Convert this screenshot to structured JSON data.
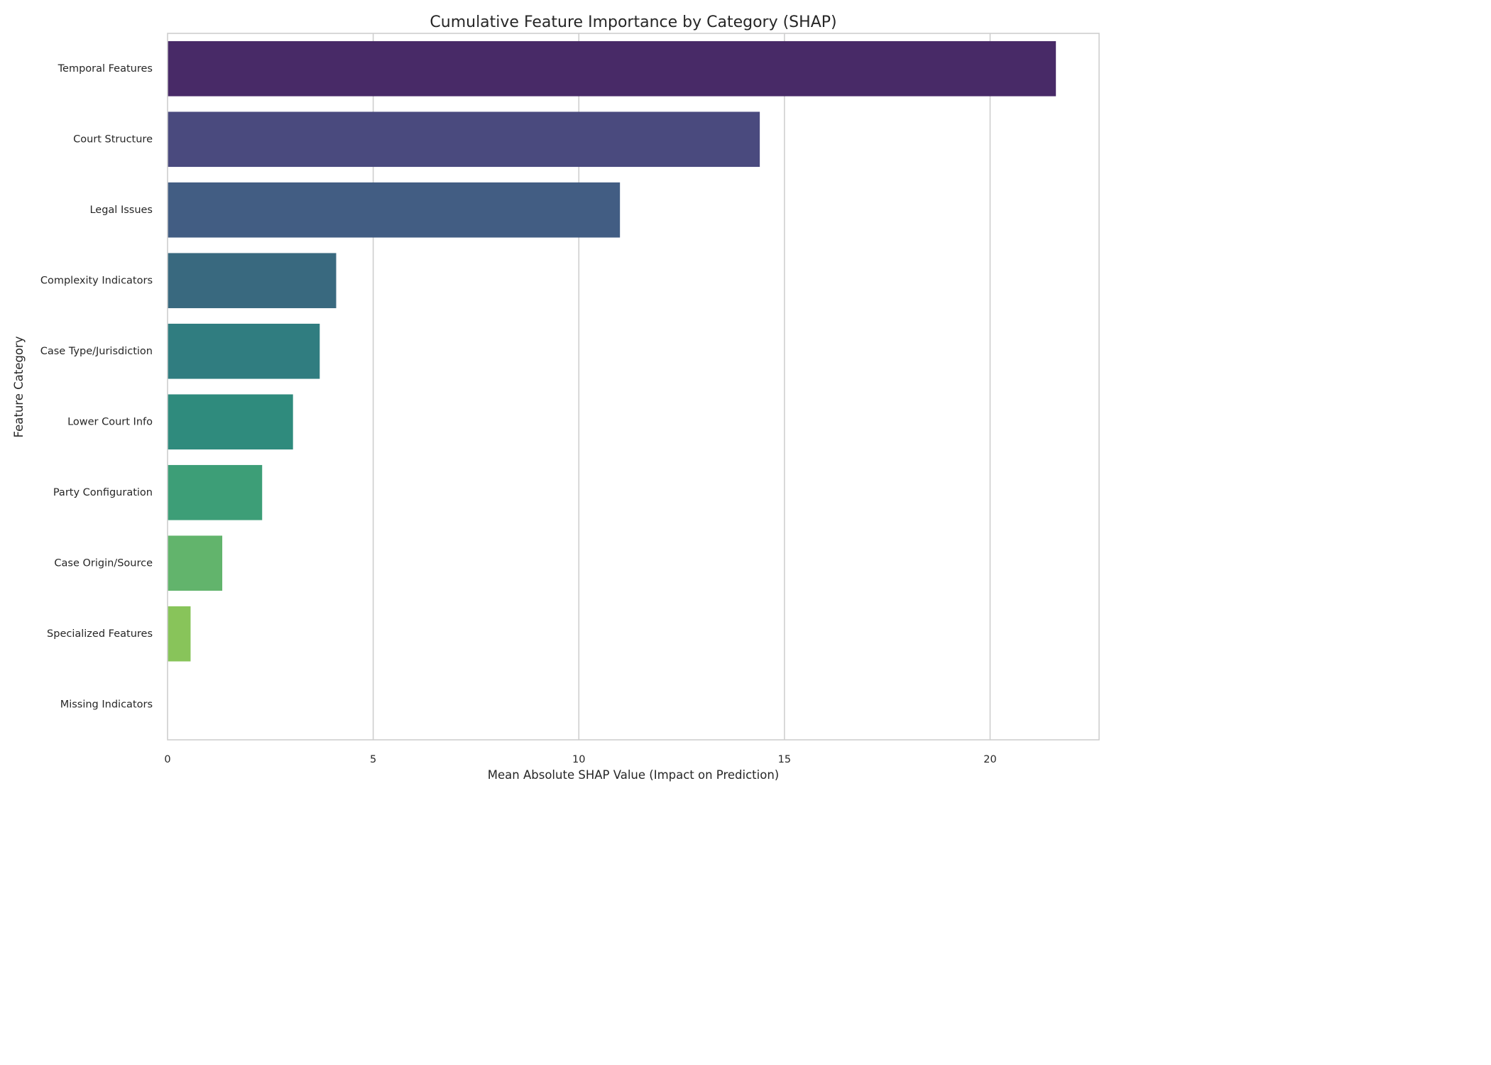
{
  "chart_data": {
    "type": "bar",
    "orientation": "horizontal",
    "title": "Cumulative Feature Importance by Category (SHAP)",
    "xlabel": "Mean Absolute SHAP Value (Impact on Prediction)",
    "ylabel": "Feature Category",
    "xlim": [
      0,
      22.65
    ],
    "xticks": [
      0,
      5,
      10,
      15,
      20
    ],
    "grid": "vertical",
    "legend": "none",
    "categories": [
      "Temporal Features",
      "Court Structure",
      "Legal Issues",
      "Complexity Indicators",
      "Case Type/Jurisdiction",
      "Lower Court Info",
      "Party Configuration",
      "Case Origin/Source",
      "Specialized Features",
      "Missing Indicators"
    ],
    "values": [
      21.6,
      14.4,
      11.0,
      4.1,
      3.7,
      3.05,
      2.3,
      1.33,
      0.56,
      0.0
    ],
    "colors": [
      "#482a67",
      "#4a4a7e",
      "#425d83",
      "#39697f",
      "#307d80",
      "#2f8b7d",
      "#3d9e77",
      "#62b46c",
      "#88c45a",
      "#a5d04f"
    ],
    "palette": "viridis"
  }
}
